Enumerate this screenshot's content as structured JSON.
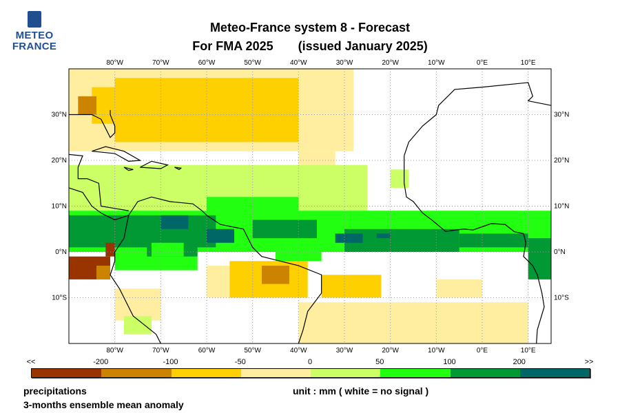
{
  "logo": {
    "line1": "METEO",
    "line2": "FRANCE"
  },
  "title": {
    "line1": "Meteo-France system 8  -  Forecast",
    "line2_left": "For FMA 2025",
    "line2_right": "(issued January 2025)"
  },
  "map": {
    "lon_labels": [
      "80°W",
      "70°W",
      "60°W",
      "50°W",
      "40°W",
      "30°W",
      "20°W",
      "10°W",
      "0°E",
      "10°E"
    ],
    "lat_labels": [
      "30°N",
      "20°N",
      "10°N",
      "0°N",
      "10°S"
    ],
    "lon_range": [
      -90,
      15
    ],
    "lat_range": [
      -20,
      40
    ]
  },
  "colorbar": {
    "labels": [
      "<<",
      "-200",
      "-100",
      "-50",
      "0",
      "50",
      "100",
      "200",
      ">>"
    ],
    "colors": [
      "#993300",
      "#cc8400",
      "#ffd000",
      "#ffeea0",
      "#ccff66",
      "#22ff11",
      "#009933",
      "#006666"
    ]
  },
  "footer": {
    "variable": "precipitations",
    "unit": "unit : mm  ( white = no signal )",
    "description": "3-months ensemble mean anomaly"
  }
}
